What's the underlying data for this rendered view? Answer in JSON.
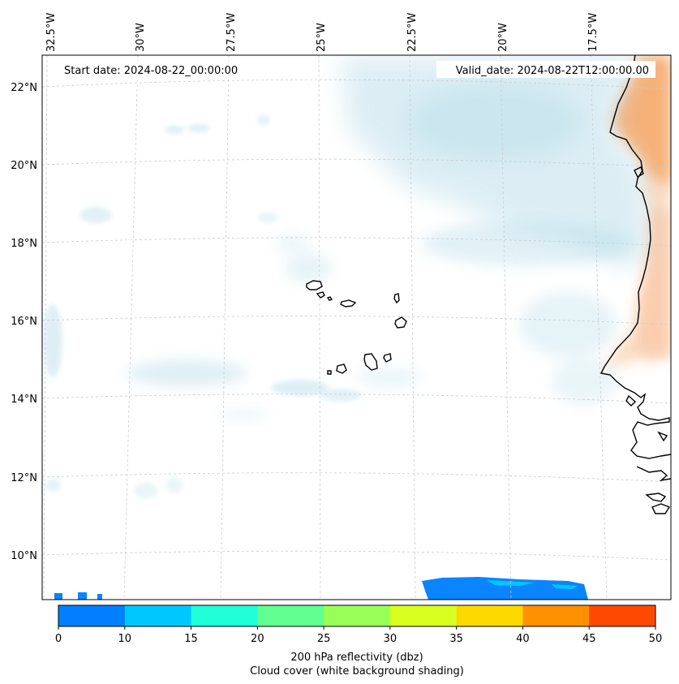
{
  "header": {
    "start_date": "Start date: 2024-08-22_00:00:00",
    "valid_date": "Valid_date: 2024-08-22T12:00:00.00"
  },
  "longitude_ticks": [
    "32.5°W",
    "30°W",
    "27.5°W",
    "25°W",
    "22.5°W",
    "20°W",
    "17.5°W"
  ],
  "latitude_ticks": [
    "22°N",
    "20°N",
    "18°N",
    "16°N",
    "14°N",
    "12°N",
    "10°N"
  ],
  "colorbar": {
    "ticks": [
      "0",
      "10",
      "15",
      "20",
      "25",
      "30",
      "35",
      "40",
      "45",
      "50"
    ],
    "colors": [
      "#0080ff",
      "#00c8ff",
      "#20ffd8",
      "#60ff90",
      "#98ff58",
      "#d8ff20",
      "#ffd800",
      "#ff9000",
      "#ff4800"
    ],
    "label_line1": "200 hPa reflectivity (dbz)",
    "label_line2": "Cloud cover (white background shading)"
  },
  "colors": {
    "cloud": "#add8e6",
    "land": "#f4a460",
    "reflectivity_low": "#0a84ff",
    "grid": "#cccccc"
  }
}
